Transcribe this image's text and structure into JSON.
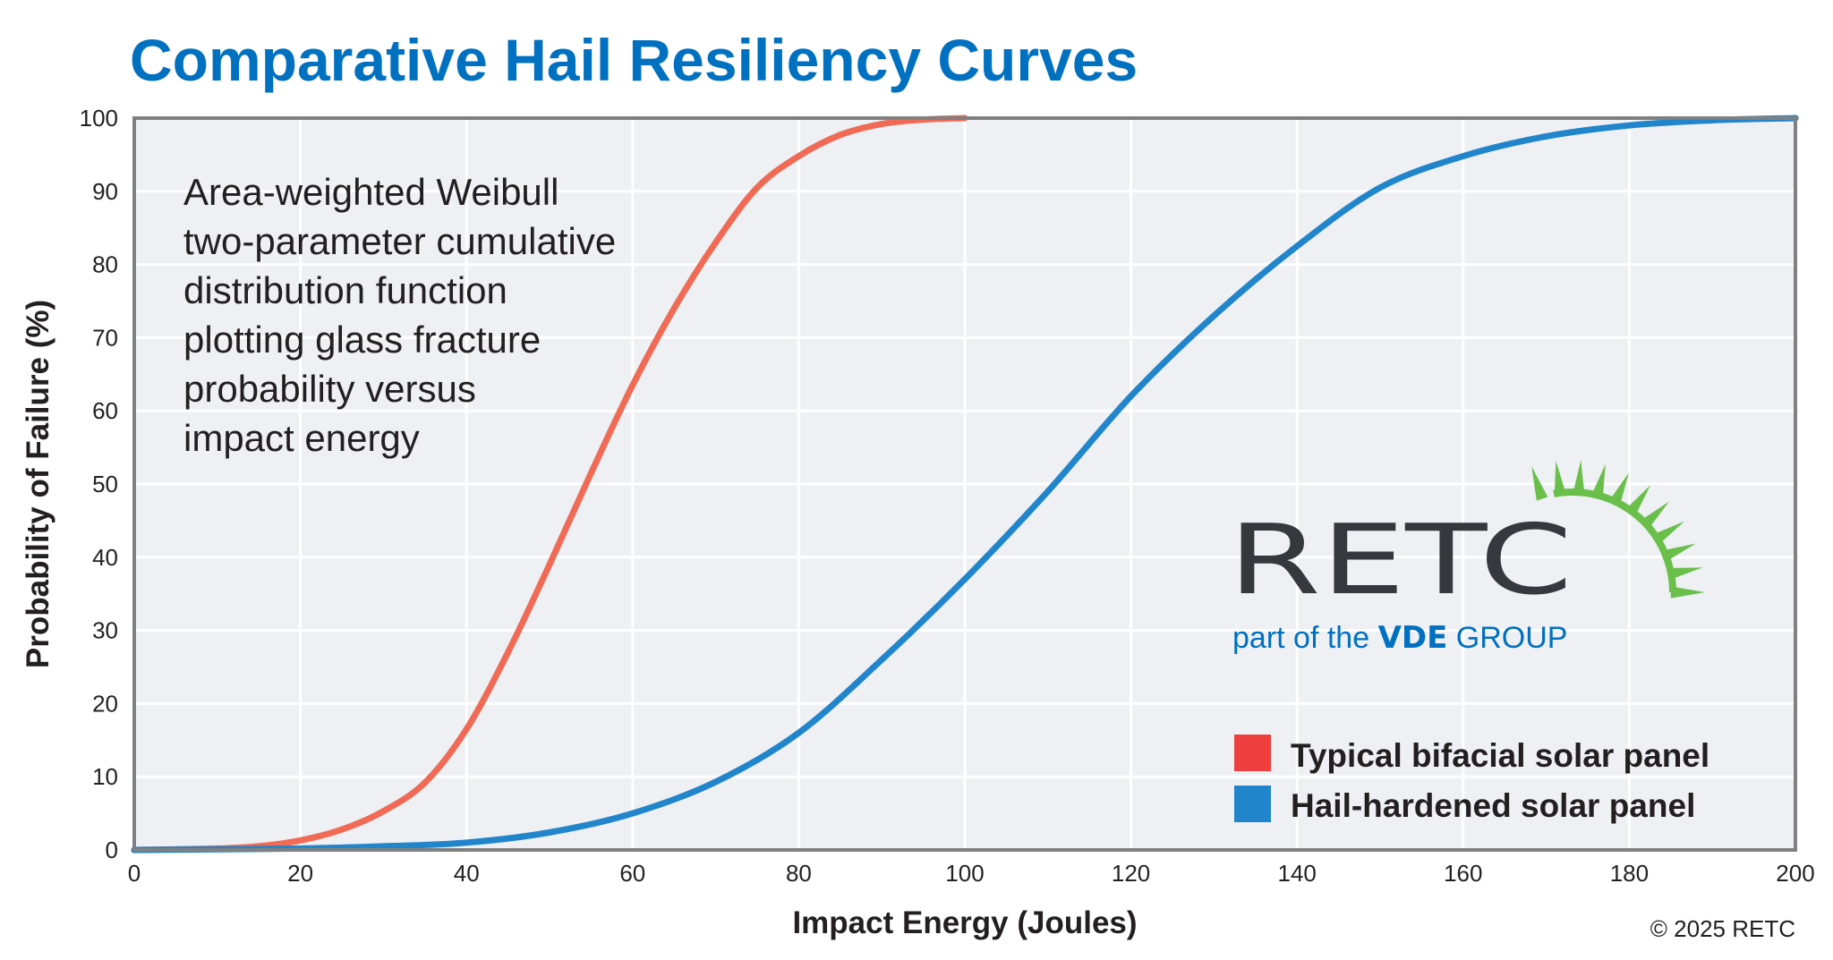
{
  "title": "Comparative Hail Resiliency Curves",
  "annotation": [
    "Area-weighted Weibull",
    "two-parameter cumulative",
    "distribution function",
    "plotting glass fracture",
    "probability versus",
    "impact energy"
  ],
  "logo": {
    "wordmark": "RETC",
    "tagline_prefix": "part of the",
    "tagline_brand": "VDE",
    "tagline_suffix": "GROUP",
    "green": "#6abf4b",
    "dark": "#35383c",
    "blue": "#0070c0"
  },
  "copyright": "© 2025 RETC",
  "chart_data": {
    "type": "line",
    "title": "Comparative Hail Resiliency Curves",
    "xlabel": "Impact Energy (Joules)",
    "ylabel": "Probability of Failure (%)",
    "xlim": [
      0,
      200
    ],
    "ylim": [
      0,
      100
    ],
    "xticks": [
      "0",
      "20",
      "40",
      "60",
      "80",
      "100",
      "120",
      "140",
      "160",
      "180",
      "200"
    ],
    "yticks": [
      "0",
      "10",
      "20",
      "30",
      "40",
      "50",
      "60",
      "70",
      "80",
      "90",
      "100"
    ],
    "grid": true,
    "legend_position": "bottom-right",
    "background": "#eef0f4",
    "series": [
      {
        "name": "Typical bifacial solar panel",
        "color": "#f06a55",
        "legend_color": "#ef3e3e",
        "x": [
          0,
          10,
          15,
          20,
          25,
          30,
          35,
          40,
          45,
          50,
          55,
          60,
          65,
          70,
          75,
          80,
          85,
          90,
          95,
          100
        ],
        "y": [
          0,
          0.2,
          0.5,
          1.3,
          2.8,
          5.3,
          9.2,
          16.5,
          27,
          39,
          51.5,
          63.5,
          74,
          83,
          90.5,
          94.8,
          97.7,
          99.2,
          99.8,
          100
        ]
      },
      {
        "name": "Hail-hardened solar panel",
        "color": "#2185cc",
        "legend_color": "#2185cc",
        "x": [
          0,
          20,
          30,
          40,
          50,
          60,
          70,
          80,
          90,
          100,
          110,
          120,
          130,
          140,
          150,
          160,
          170,
          180,
          190,
          200
        ],
        "y": [
          0,
          0.2,
          0.5,
          1,
          2.4,
          5,
          9.3,
          16,
          26,
          37,
          49,
          62,
          73,
          82.5,
          90.5,
          94.8,
          97.5,
          99,
          99.7,
          100
        ]
      }
    ]
  }
}
